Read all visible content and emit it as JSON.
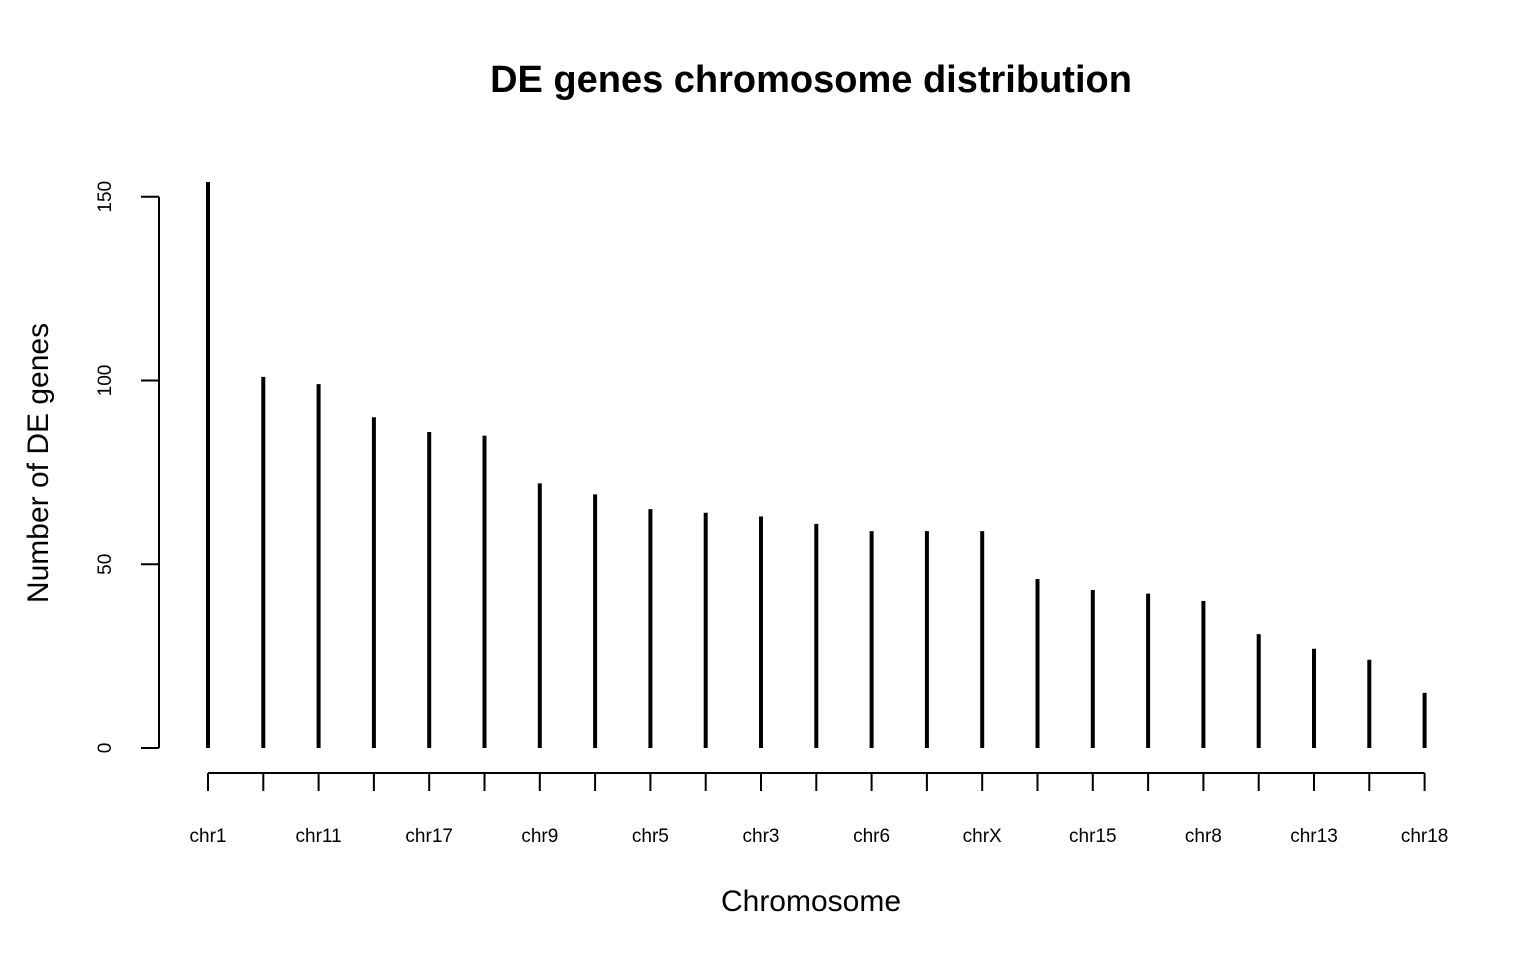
{
  "chart_data": {
    "type": "bar",
    "style": "vertical lines (type h)",
    "title": "DE genes chromosome distribution",
    "xlabel": "Chromosome",
    "ylabel": "Number of DE genes",
    "ylim": [
      0,
      155
    ],
    "yticks": [
      0,
      50,
      100,
      150
    ],
    "grid": false,
    "legend": "none",
    "bar_color": "#000000",
    "categories": [
      "chr1",
      "",
      "chr11",
      "",
      "chr17",
      "",
      "chr9",
      "",
      "chr5",
      "",
      "chr3",
      "",
      "chr6",
      "",
      "chrX",
      "",
      "chr15",
      "",
      "chr8",
      "",
      "chr13",
      "",
      "chr18"
    ],
    "values": [
      154,
      101,
      99,
      90,
      86,
      85,
      72,
      69,
      65,
      64,
      63,
      61,
      59,
      59,
      59,
      46,
      43,
      42,
      40,
      31,
      27,
      24,
      15
    ]
  }
}
